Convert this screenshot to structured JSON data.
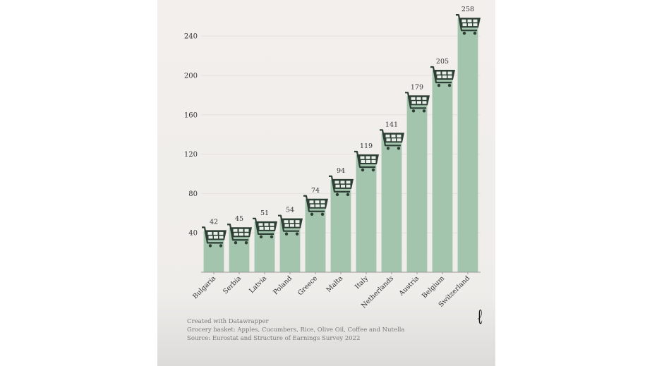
{
  "chart_data": {
    "type": "bar",
    "title": "",
    "xlabel": "",
    "ylabel": "",
    "categories": [
      "Bulgaria",
      "Serbia",
      "Latvia",
      "Poland",
      "Greece",
      "Malta",
      "Italy",
      "Netherlands",
      "Austria",
      "Belgium",
      "Switzerland"
    ],
    "values": [
      42,
      45,
      51,
      54,
      74,
      94,
      119,
      141,
      179,
      205,
      258
    ],
    "data_labels": [
      "42",
      "45",
      "51",
      "54",
      "74",
      "94",
      "119",
      "141",
      "179",
      "205",
      "258"
    ],
    "ylim": [
      0,
      260
    ],
    "yticks": [
      40,
      80,
      120,
      160,
      200,
      240
    ],
    "ytick_labels": [
      "40",
      "80",
      "120",
      "160",
      "200",
      "240"
    ],
    "grid": true,
    "bar_color": "#a3c4ad",
    "icon_color": "#2d3e34",
    "bar_marker_icon": "shopping-cart-icon"
  },
  "footer": {
    "credit": "Created with Datawrapper",
    "note": "Grocery basket: Apples, Cucumbers, Rice, Olive Oil, Coffee and Nutella",
    "source": "Source: Eurostat and Structure of Earnings Survey 2022"
  },
  "logo": {
    "text": "ℓ",
    "icon": "brand-logo-icon"
  }
}
